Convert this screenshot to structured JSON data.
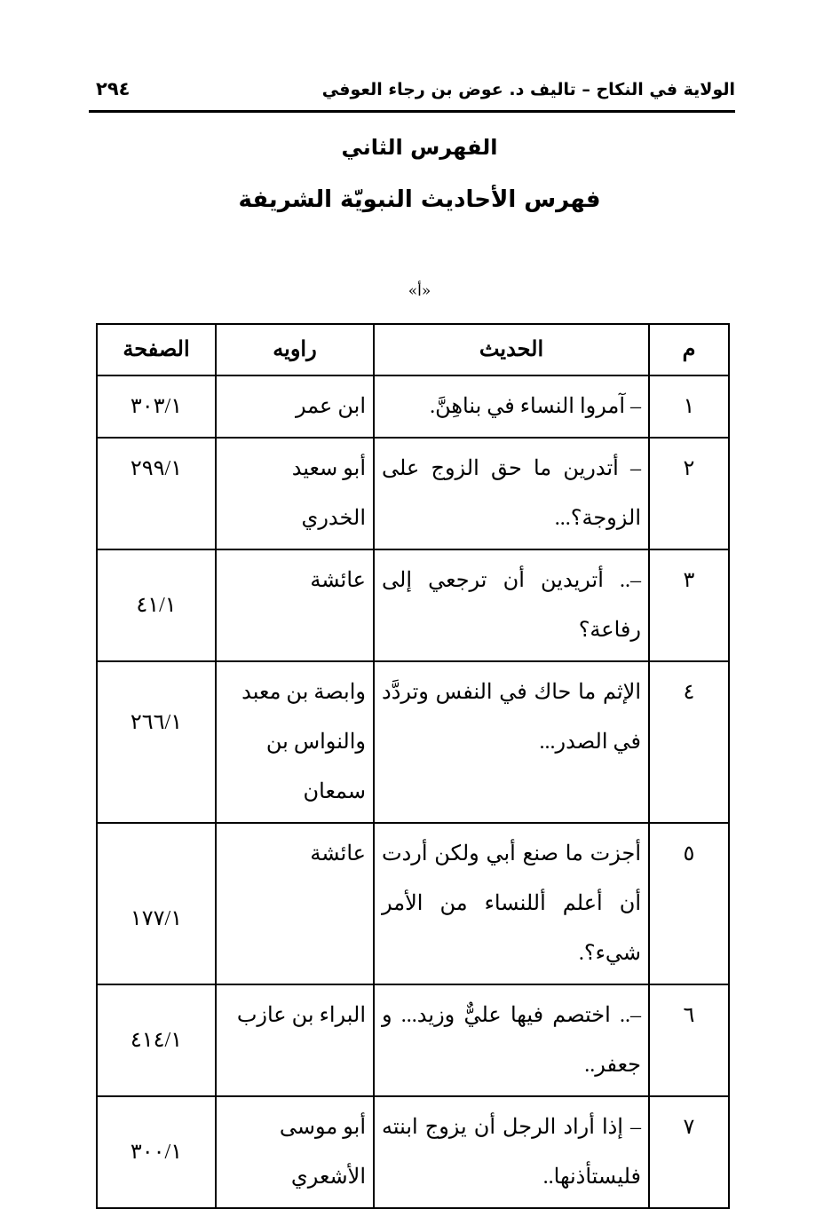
{
  "header": {
    "running_title": "الولاية في النكاح – تاليف د. عوض بن رجاء العوفي",
    "page_number": "٢٩٤"
  },
  "titles": {
    "index_name": "الفهرس الثاني",
    "index_subject": "فهرس الأحاديث النبويّة الشريفة",
    "letter_heading": "«أ»"
  },
  "table": {
    "columns": [
      "م",
      "الحديث",
      "راويه",
      "الصفحة"
    ],
    "rows": [
      {
        "num": "١",
        "hadith": "– آمروا النساء في بناهِنَّ.",
        "narrator": "ابن عمر",
        "page": "٣٠٣/١"
      },
      {
        "num": "٢",
        "hadith": "– أتدرين ما حق الزوج على الزوجة؟...",
        "narrator": "أبو سعيد الخدري",
        "page": "٢٩٩/١"
      },
      {
        "num": "٣",
        "hadith": "–.. أتريدين أن ترجعي إلى رفاعة؟",
        "narrator": "عائشة",
        "page": "٤١/١"
      },
      {
        "num": "٤",
        "hadith": "الإثم ما حاك في النفس وتردَّد في الصدر...",
        "narrator": "وابصة بن معبد والنواس بن سمعان",
        "page": "٢٦٦/١"
      },
      {
        "num": "٥",
        "hadith": "أجزت ما صنع أبي ولكن أردت أن أعلم أللنساء من الأمر شيء؟.",
        "narrator": "عائشة",
        "page": "١٧٧/١"
      },
      {
        "num": "٦",
        "hadith": "–.. اختصم فيها عليٌّ وزيد... و جعفر..",
        "narrator": "البراء بن عازب",
        "page": "٤١٤/١"
      },
      {
        "num": "٧",
        "hadith": "– إذا أراد الرجل أن يزوج ابنته فليستأذنها..",
        "narrator": "أبو موسى الأشعري",
        "page": "٣٠٠/١"
      }
    ]
  }
}
